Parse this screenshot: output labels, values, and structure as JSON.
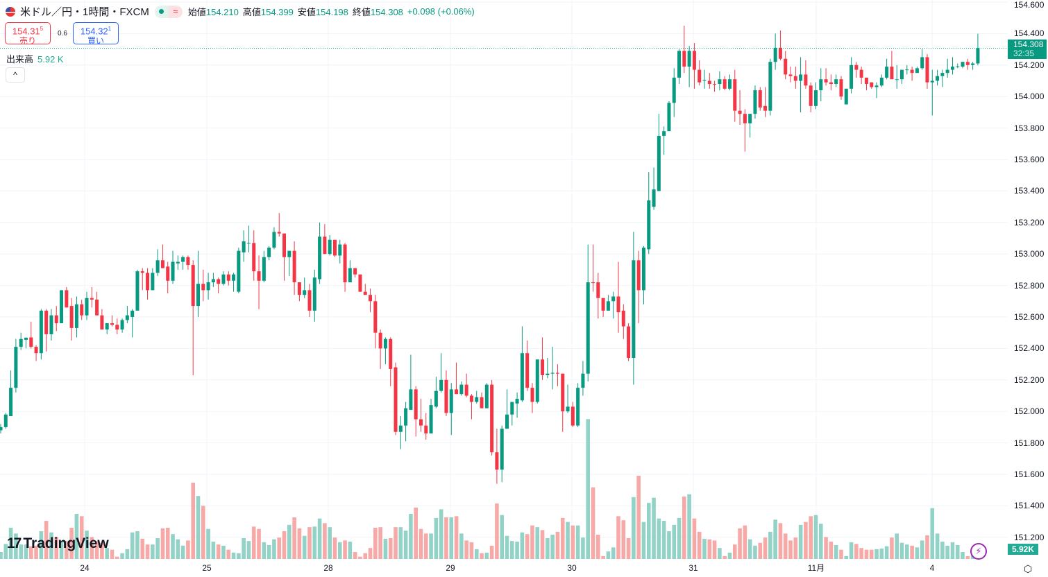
{
  "header": {
    "symbol_title": "米ドル／円・1時間・FXCM",
    "flag_icon": "us-flag-icon",
    "status_icons": [
      "market-open-dot-icon",
      "delayed-approx-icon"
    ],
    "status_approx_glyph": "≈",
    "ohlc": [
      {
        "label": "始値",
        "value": "154.210"
      },
      {
        "label": "高値",
        "value": "154.399"
      },
      {
        "label": "安値",
        "value": "154.198"
      },
      {
        "label": "終値",
        "value": "154.308"
      }
    ],
    "change": "+0.098 (+0.06%)"
  },
  "trade": {
    "sell_price": "154.31",
    "sell_price_sup": "5",
    "sell_label": "売り",
    "spread": "0.6",
    "buy_price": "154.32",
    "buy_price_sup": "1",
    "buy_label": "買い"
  },
  "volume_legend": {
    "label": "出来高",
    "value": "5.92 K"
  },
  "collapse_glyph": "^",
  "price_axis": {
    "ticks": [
      "154.600",
      "154.400",
      "154.200",
      "154.000",
      "153.800",
      "153.600",
      "153.400",
      "153.200",
      "153.000",
      "152.800",
      "152.600",
      "152.400",
      "152.200",
      "152.000",
      "151.800",
      "151.600",
      "151.400",
      "151.200"
    ],
    "current_price": "154.308",
    "countdown": "32:35",
    "volume_value": "5.92K"
  },
  "time_axis": {
    "ticks": [
      "24",
      "25",
      "28",
      "29",
      "30",
      "31",
      "11月",
      "4"
    ]
  },
  "logo": {
    "text": "TradingView",
    "mark": "17"
  },
  "icons": {
    "bolt": "⚡",
    "settings": "⬡"
  },
  "colors": {
    "up": "#089981",
    "down": "#f23645",
    "volume_up": "#92d2c7",
    "volume_down": "#f7a9a7",
    "grid": "#f0f3fa"
  },
  "chart_data": {
    "type": "candlestick",
    "title": "",
    "price_range": [
      151.2,
      154.6
    ],
    "grid": true,
    "candles_ohlc": [
      [
        151.88,
        151.92,
        151.86,
        151.9
      ],
      [
        151.9,
        151.99,
        151.89,
        151.98
      ],
      [
        151.97,
        152.26,
        151.97,
        152.15
      ],
      [
        152.15,
        152.46,
        152.12,
        152.41
      ],
      [
        152.41,
        152.5,
        152.39,
        152.46
      ],
      [
        152.455,
        152.47,
        152.4,
        152.468
      ],
      [
        152.47,
        152.57,
        152.4,
        152.41
      ],
      [
        152.41,
        152.42,
        152.32,
        152.37
      ],
      [
        152.37,
        152.65,
        152.33,
        152.64
      ],
      [
        152.64,
        152.65,
        152.38,
        152.49
      ],
      [
        152.49,
        152.65,
        152.45,
        152.61
      ],
      [
        152.61,
        152.67,
        152.51,
        152.56
      ],
      [
        152.56,
        152.77,
        152.56,
        152.77
      ],
      [
        152.77,
        152.79,
        152.66,
        152.66
      ],
      [
        152.67,
        152.72,
        152.45,
        152.53
      ],
      [
        152.53,
        152.73,
        152.47,
        152.68
      ],
      [
        152.68,
        152.71,
        152.58,
        152.61
      ],
      [
        152.61,
        152.76,
        152.58,
        152.72
      ],
      [
        152.72,
        152.79,
        152.66,
        152.71
      ],
      [
        152.71,
        152.76,
        152.61,
        152.61
      ],
      [
        152.61,
        152.65,
        152.52,
        152.52
      ],
      [
        152.52,
        152.56,
        152.49,
        152.56
      ],
      [
        152.56,
        152.61,
        152.54,
        152.55
      ],
      [
        152.55,
        152.59,
        152.49,
        152.52
      ],
      [
        152.52,
        152.59,
        152.5,
        152.58
      ],
      [
        152.58,
        152.67,
        152.56,
        152.61
      ],
      [
        152.6,
        152.65,
        152.47,
        152.64
      ],
      [
        152.64,
        152.9,
        152.64,
        152.89
      ],
      [
        152.89,
        152.91,
        152.77,
        152.88
      ],
      [
        152.88,
        152.91,
        152.71,
        152.77
      ],
      [
        152.77,
        152.91,
        152.77,
        152.88
      ],
      [
        152.88,
        153.03,
        152.86,
        152.96
      ],
      [
        152.96,
        153.06,
        152.91,
        152.91
      ],
      [
        152.92,
        152.95,
        152.75,
        152.83
      ],
      [
        152.83,
        153.02,
        152.81,
        152.95
      ],
      [
        152.94,
        152.99,
        152.9,
        152.95
      ],
      [
        152.95,
        152.99,
        152.9,
        152.98
      ],
      [
        152.98,
        152.99,
        152.9,
        152.93
      ],
      [
        152.93,
        152.96,
        152.23,
        152.67
      ],
      [
        152.67,
        153.02,
        152.6,
        152.81
      ],
      [
        152.81,
        152.9,
        152.7,
        152.77
      ],
      [
        152.77,
        152.88,
        152.71,
        152.82
      ],
      [
        152.82,
        152.88,
        152.79,
        152.84
      ],
      [
        152.84,
        152.85,
        152.75,
        152.81
      ],
      [
        152.81,
        152.89,
        152.8,
        152.87
      ],
      [
        152.87,
        152.89,
        152.8,
        152.83
      ],
      [
        152.83,
        152.88,
        152.76,
        152.87
      ],
      [
        152.76,
        153.04,
        152.75,
        153.02
      ],
      [
        153.01,
        153.15,
        152.95,
        153.08
      ],
      [
        153.07,
        153.18,
        153.01,
        153.07
      ],
      [
        153.07,
        153.15,
        152.83,
        152.89
      ],
      [
        152.89,
        152.99,
        152.65,
        152.83
      ],
      [
        152.83,
        153.02,
        152.82,
        152.98
      ],
      [
        152.98,
        153.05,
        152.96,
        153.04
      ],
      [
        153.04,
        153.17,
        153.03,
        153.14
      ],
      [
        153.14,
        153.26,
        153.11,
        153.13
      ],
      [
        153.13,
        153.13,
        152.83,
        152.98
      ],
      [
        152.98,
        153.02,
        152.86,
        153.02
      ],
      [
        153.02,
        153.08,
        152.74,
        152.82
      ],
      [
        152.82,
        152.82,
        152.7,
        152.74
      ],
      [
        152.74,
        152.85,
        152.72,
        152.77
      ],
      [
        152.77,
        152.81,
        152.6,
        152.64
      ],
      [
        152.64,
        152.9,
        152.57,
        152.85
      ],
      [
        152.84,
        153.2,
        152.81,
        153.11
      ],
      [
        153.11,
        153.19,
        153.0,
        153.0
      ],
      [
        153.0,
        153.12,
        152.99,
        153.09
      ],
      [
        153.09,
        153.09,
        152.98,
        152.99
      ],
      [
        152.99,
        153.09,
        152.94,
        153.06
      ],
      [
        153.06,
        153.07,
        152.76,
        152.82
      ],
      [
        152.82,
        152.96,
        152.82,
        152.91
      ],
      [
        152.91,
        152.91,
        152.85,
        152.87
      ],
      [
        152.87,
        152.87,
        152.76,
        152.76
      ],
      [
        152.76,
        152.81,
        152.74,
        152.74
      ],
      [
        152.74,
        152.78,
        152.63,
        152.7
      ],
      [
        152.7,
        152.74,
        152.4,
        152.5
      ],
      [
        152.5,
        152.52,
        152.27,
        152.4
      ],
      [
        152.4,
        152.47,
        152.3,
        152.46
      ],
      [
        152.46,
        152.47,
        152.16,
        152.27
      ],
      [
        152.28,
        152.31,
        151.85,
        151.87
      ],
      [
        151.87,
        151.97,
        151.76,
        151.91
      ],
      [
        151.91,
        152.06,
        151.81,
        152.02
      ],
      [
        152.01,
        152.36,
        152.01,
        152.14
      ],
      [
        152.14,
        152.16,
        151.84,
        151.95
      ],
      [
        151.95,
        152.08,
        151.87,
        151.91
      ],
      [
        151.91,
        151.99,
        151.82,
        151.86
      ],
      [
        151.86,
        152.08,
        151.86,
        152.04
      ],
      [
        152.03,
        152.22,
        152.02,
        152.13
      ],
      [
        152.13,
        152.37,
        152.12,
        152.2
      ],
      [
        152.2,
        152.26,
        151.97,
        151.99
      ],
      [
        151.99,
        152.18,
        151.85,
        152.14
      ],
      [
        152.14,
        152.31,
        152.11,
        152.11
      ],
      [
        152.11,
        152.19,
        152.1,
        152.17
      ],
      [
        152.17,
        152.24,
        152.09,
        152.1
      ],
      [
        152.1,
        152.11,
        151.95,
        152.06
      ],
      [
        152.06,
        152.13,
        152.05,
        152.09
      ],
      [
        152.09,
        152.12,
        152.02,
        152.02
      ],
      [
        152.02,
        152.18,
        152.02,
        152.17
      ],
      [
        152.17,
        152.2,
        151.72,
        151.74
      ],
      [
        151.74,
        151.89,
        151.54,
        151.63
      ],
      [
        151.63,
        151.91,
        151.55,
        151.89
      ],
      [
        151.89,
        152.14,
        151.89,
        151.98
      ],
      [
        151.98,
        152.06,
        151.91,
        152.06
      ],
      [
        152.05,
        152.12,
        151.96,
        152.08
      ],
      [
        152.07,
        152.54,
        152.06,
        152.37
      ],
      [
        152.37,
        152.45,
        152.13,
        152.15
      ],
      [
        152.15,
        152.18,
        151.99,
        152.06
      ],
      [
        152.06,
        152.33,
        152.05,
        152.33
      ],
      [
        152.33,
        152.47,
        152.2,
        152.23
      ],
      [
        152.23,
        152.34,
        152.21,
        152.24
      ],
      [
        152.24,
        152.41,
        152.14,
        152.245
      ],
      [
        152.245,
        152.3,
        152.16,
        152.24
      ],
      [
        152.24,
        152.24,
        151.87,
        152.0
      ],
      [
        152.0,
        152.17,
        151.99,
        152.03
      ],
      [
        152.03,
        152.06,
        151.9,
        151.91
      ],
      [
        151.91,
        152.18,
        151.9,
        152.15
      ],
      [
        152.15,
        152.32,
        152.1,
        152.24
      ],
      [
        152.24,
        153.06,
        152.19,
        152.82
      ],
      [
        152.82,
        153.06,
        152.76,
        152.815
      ],
      [
        152.82,
        152.88,
        152.59,
        152.72
      ],
      [
        152.72,
        152.72,
        152.6,
        152.64
      ],
      [
        152.64,
        152.74,
        152.64,
        152.7
      ],
      [
        152.7,
        152.76,
        152.59,
        152.73
      ],
      [
        152.73,
        152.95,
        152.5,
        152.63
      ],
      [
        152.64,
        152.68,
        152.46,
        152.54
      ],
      [
        152.54,
        152.56,
        152.32,
        152.34
      ],
      [
        152.34,
        153.14,
        152.17,
        152.96
      ],
      [
        152.96,
        153.02,
        152.56,
        152.77
      ],
      [
        152.77,
        153.05,
        152.68,
        153.04
      ],
      [
        153.03,
        153.52,
        153.0,
        153.34
      ],
      [
        153.3,
        153.55,
        153.28,
        153.41
      ],
      [
        153.4,
        153.89,
        153.4,
        153.75
      ],
      [
        153.75,
        153.81,
        153.63,
        153.78
      ],
      [
        153.78,
        153.97,
        153.78,
        153.96
      ],
      [
        153.96,
        154.18,
        153.87,
        154.12
      ],
      [
        154.12,
        154.3,
        154.08,
        154.29
      ],
      [
        154.29,
        154.45,
        154.15,
        154.19
      ],
      [
        154.19,
        154.32,
        154.06,
        154.29
      ],
      [
        154.29,
        154.34,
        154.05,
        154.17
      ],
      [
        154.17,
        154.23,
        154.07,
        154.09
      ],
      [
        154.1,
        154.17,
        154.05,
        154.105
      ],
      [
        154.1,
        154.15,
        154.05,
        154.08
      ],
      [
        154.08,
        154.1,
        154.03,
        154.078
      ],
      [
        154.08,
        154.16,
        154.04,
        154.11
      ],
      [
        154.11,
        154.13,
        154.04,
        154.05
      ],
      [
        154.05,
        154.14,
        154.04,
        154.11
      ],
      [
        154.11,
        154.17,
        153.84,
        153.91
      ],
      [
        153.91,
        154.04,
        153.82,
        153.89
      ],
      [
        153.89,
        153.92,
        153.65,
        153.83
      ],
      [
        153.83,
        153.89,
        153.74,
        153.89
      ],
      [
        153.89,
        154.07,
        153.86,
        154.04
      ],
      [
        154.04,
        154.06,
        153.91,
        153.93
      ],
      [
        153.94,
        154.06,
        153.87,
        153.91
      ],
      [
        153.91,
        154.24,
        153.88,
        154.22
      ],
      [
        154.22,
        154.4,
        154.17,
        154.31
      ],
      [
        154.31,
        154.42,
        154.23,
        154.24
      ],
      [
        154.24,
        154.29,
        154.11,
        154.14
      ],
      [
        154.14,
        154.19,
        154.09,
        154.13
      ],
      [
        154.13,
        154.19,
        154.05,
        154.1
      ],
      [
        154.1,
        154.25,
        153.9,
        154.14
      ],
      [
        154.14,
        154.23,
        154.05,
        154.07
      ],
      [
        154.07,
        154.09,
        153.9,
        153.94
      ],
      [
        153.94,
        154.09,
        153.92,
        154.04
      ],
      [
        154.04,
        154.18,
        153.97,
        154.11
      ],
      [
        154.11,
        154.18,
        154.07,
        154.09
      ],
      [
        154.09,
        154.14,
        154.04,
        154.08
      ],
      [
        154.08,
        154.14,
        154.06,
        154.11
      ],
      [
        154.11,
        154.13,
        153.98,
        154.0
      ],
      [
        153.95,
        154.05,
        153.95,
        154.05
      ],
      [
        154.05,
        154.25,
        154.02,
        154.2
      ],
      [
        154.2,
        154.22,
        154.12,
        154.17
      ],
      [
        154.17,
        154.19,
        154.08,
        154.12
      ],
      [
        154.12,
        154.12,
        154.04,
        154.08
      ],
      [
        154.09,
        154.09,
        154.05,
        154.06
      ],
      [
        154.06,
        154.09,
        153.99,
        154.07
      ],
      [
        154.07,
        154.14,
        154.06,
        154.12
      ],
      [
        154.12,
        154.24,
        154.11,
        154.19
      ],
      [
        154.19,
        154.29,
        154.11,
        154.11
      ],
      [
        154.11,
        154.2,
        154.05,
        154.11
      ],
      [
        154.11,
        154.17,
        154.08,
        154.17
      ],
      [
        154.17,
        154.2,
        154.14,
        154.172
      ],
      [
        154.17,
        154.19,
        154.1,
        154.15
      ],
      [
        154.15,
        154.19,
        154.15,
        154.18
      ],
      [
        154.18,
        154.3,
        154.17,
        154.25
      ],
      [
        154.25,
        154.27,
        154.05,
        154.09
      ],
      [
        154.09,
        154.17,
        153.88,
        154.1
      ],
      [
        154.1,
        154.17,
        154.07,
        154.13
      ],
      [
        154.13,
        154.17,
        154.06,
        154.15
      ],
      [
        154.15,
        154.24,
        154.12,
        154.17
      ],
      [
        154.17,
        154.25,
        154.14,
        154.19
      ],
      [
        154.19,
        154.21,
        154.18,
        154.192
      ],
      [
        154.19,
        154.22,
        154.18,
        154.22
      ],
      [
        154.22,
        154.24,
        154.17,
        154.2
      ],
      [
        154.2,
        154.22,
        154.17,
        154.21
      ],
      [
        154.21,
        154.399,
        154.198,
        154.308
      ]
    ],
    "volume_k": [
      12,
      26,
      54,
      44,
      25,
      25,
      22,
      23,
      48,
      66,
      46,
      38,
      31,
      31,
      54,
      78,
      74,
      49,
      38,
      31,
      28,
      19,
      16,
      4,
      10,
      17,
      46,
      48,
      35,
      25,
      25,
      36,
      53,
      54,
      43,
      34,
      23,
      32,
      132,
      109,
      92,
      52,
      30,
      25,
      23,
      16,
      11,
      10,
      36,
      31,
      56,
      52,
      29,
      24,
      34,
      37,
      48,
      59,
      72,
      53,
      40,
      55,
      56,
      70,
      62,
      55,
      37,
      29,
      32,
      30,
      12,
      4,
      10,
      19,
      54,
      55,
      35,
      36,
      55,
      55,
      49,
      78,
      89,
      52,
      44,
      44,
      71,
      86,
      72,
      72,
      74,
      44,
      32,
      29,
      17,
      10,
      11,
      23,
      96,
      76,
      40,
      31,
      30,
      46,
      43,
      58,
      55,
      50,
      36,
      42,
      47,
      71,
      64,
      58,
      58,
      37,
      242,
      124,
      42,
      5,
      13,
      20,
      74,
      67,
      36,
      107,
      144,
      64,
      97,
      106,
      70,
      66,
      48,
      59,
      71,
      108,
      112,
      70,
      47,
      35,
      34,
      32,
      19,
      5,
      11,
      25,
      53,
      58,
      34,
      23,
      28,
      37,
      47,
      68,
      62,
      44,
      32,
      37,
      59,
      64,
      74,
      76,
      61,
      38,
      30,
      24,
      16,
      5,
      29,
      26,
      19,
      16,
      16,
      17,
      18,
      22,
      37,
      44,
      28,
      25,
      23,
      20,
      32,
      41,
      88,
      44,
      30,
      23,
      29,
      24,
      12,
      5,
      7,
      5.92
    ]
  }
}
